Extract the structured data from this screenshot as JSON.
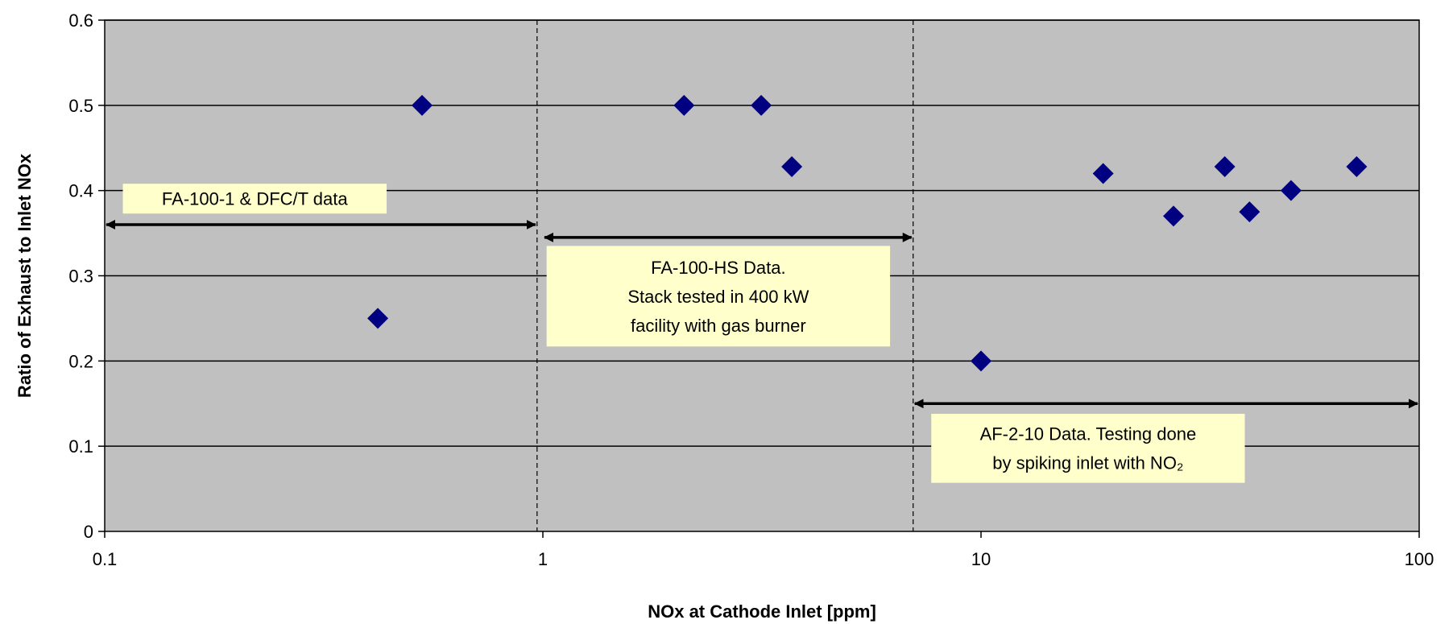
{
  "chart_data": {
    "type": "scatter",
    "xlabel": "NOx at Cathode Inlet [ppm]",
    "ylabel": "Ratio of Exhaust to Inlet NOx",
    "x_scale": "log",
    "xlim": [
      0.1,
      100
    ],
    "ylim": [
      0,
      0.6
    ],
    "x_ticks": [
      0.1,
      1,
      10,
      100
    ],
    "x_tick_labels": [
      "0.1",
      "1",
      "10",
      "100"
    ],
    "y_ticks": [
      0,
      0.1,
      0.2,
      0.3,
      0.4,
      0.5,
      0.6
    ],
    "y_tick_labels": [
      "0",
      "0.1",
      "0.2",
      "0.3",
      "0.4",
      "0.5",
      "0.6"
    ],
    "grid": "horizontal",
    "legend": "none",
    "marker": "diamond",
    "colors": {
      "plot_background": "#c0c0c0",
      "marker": "#000080",
      "annotation_box": "#ffffcc"
    },
    "series": [
      {
        "points": [
          {
            "x": 0.42,
            "y": 0.25
          },
          {
            "x": 0.53,
            "y": 0.5
          },
          {
            "x": 2.1,
            "y": 0.5
          },
          {
            "x": 3.15,
            "y": 0.5
          },
          {
            "x": 3.7,
            "y": 0.428
          },
          {
            "x": 10,
            "y": 0.2
          },
          {
            "x": 19,
            "y": 0.42
          },
          {
            "x": 27.5,
            "y": 0.37
          },
          {
            "x": 36,
            "y": 0.428
          },
          {
            "x": 41,
            "y": 0.375
          },
          {
            "x": 51,
            "y": 0.4
          },
          {
            "x": 72,
            "y": 0.428
          }
        ]
      }
    ],
    "dividers_x": [
      0.97,
      7.0
    ],
    "annotations": [
      {
        "lines": [
          "FA-100-1 & DFC/T data"
        ],
        "arrow_x": [
          0.1,
          0.97
        ],
        "arrow_y": 0.36,
        "box_x": [
          0.11,
          0.44
        ],
        "box_y": [
          0.373,
          0.408
        ]
      },
      {
        "lines": [
          "FA-100-HS Data.",
          "Stack tested in 400 kW",
          "facility with gas burner"
        ],
        "arrow_x": [
          1.0,
          7.0
        ],
        "arrow_y": 0.345,
        "box_x": [
          1.02,
          6.2
        ],
        "box_y": [
          0.217,
          0.335
        ]
      },
      {
        "lines": [
          "AF-2-10 Data. Testing done",
          "by spiking inlet with NO₂"
        ],
        "arrow_x": [
          7.0,
          100
        ],
        "arrow_y": 0.15,
        "box_x": [
          7.7,
          40
        ],
        "box_y": [
          0.057,
          0.138
        ]
      }
    ]
  }
}
